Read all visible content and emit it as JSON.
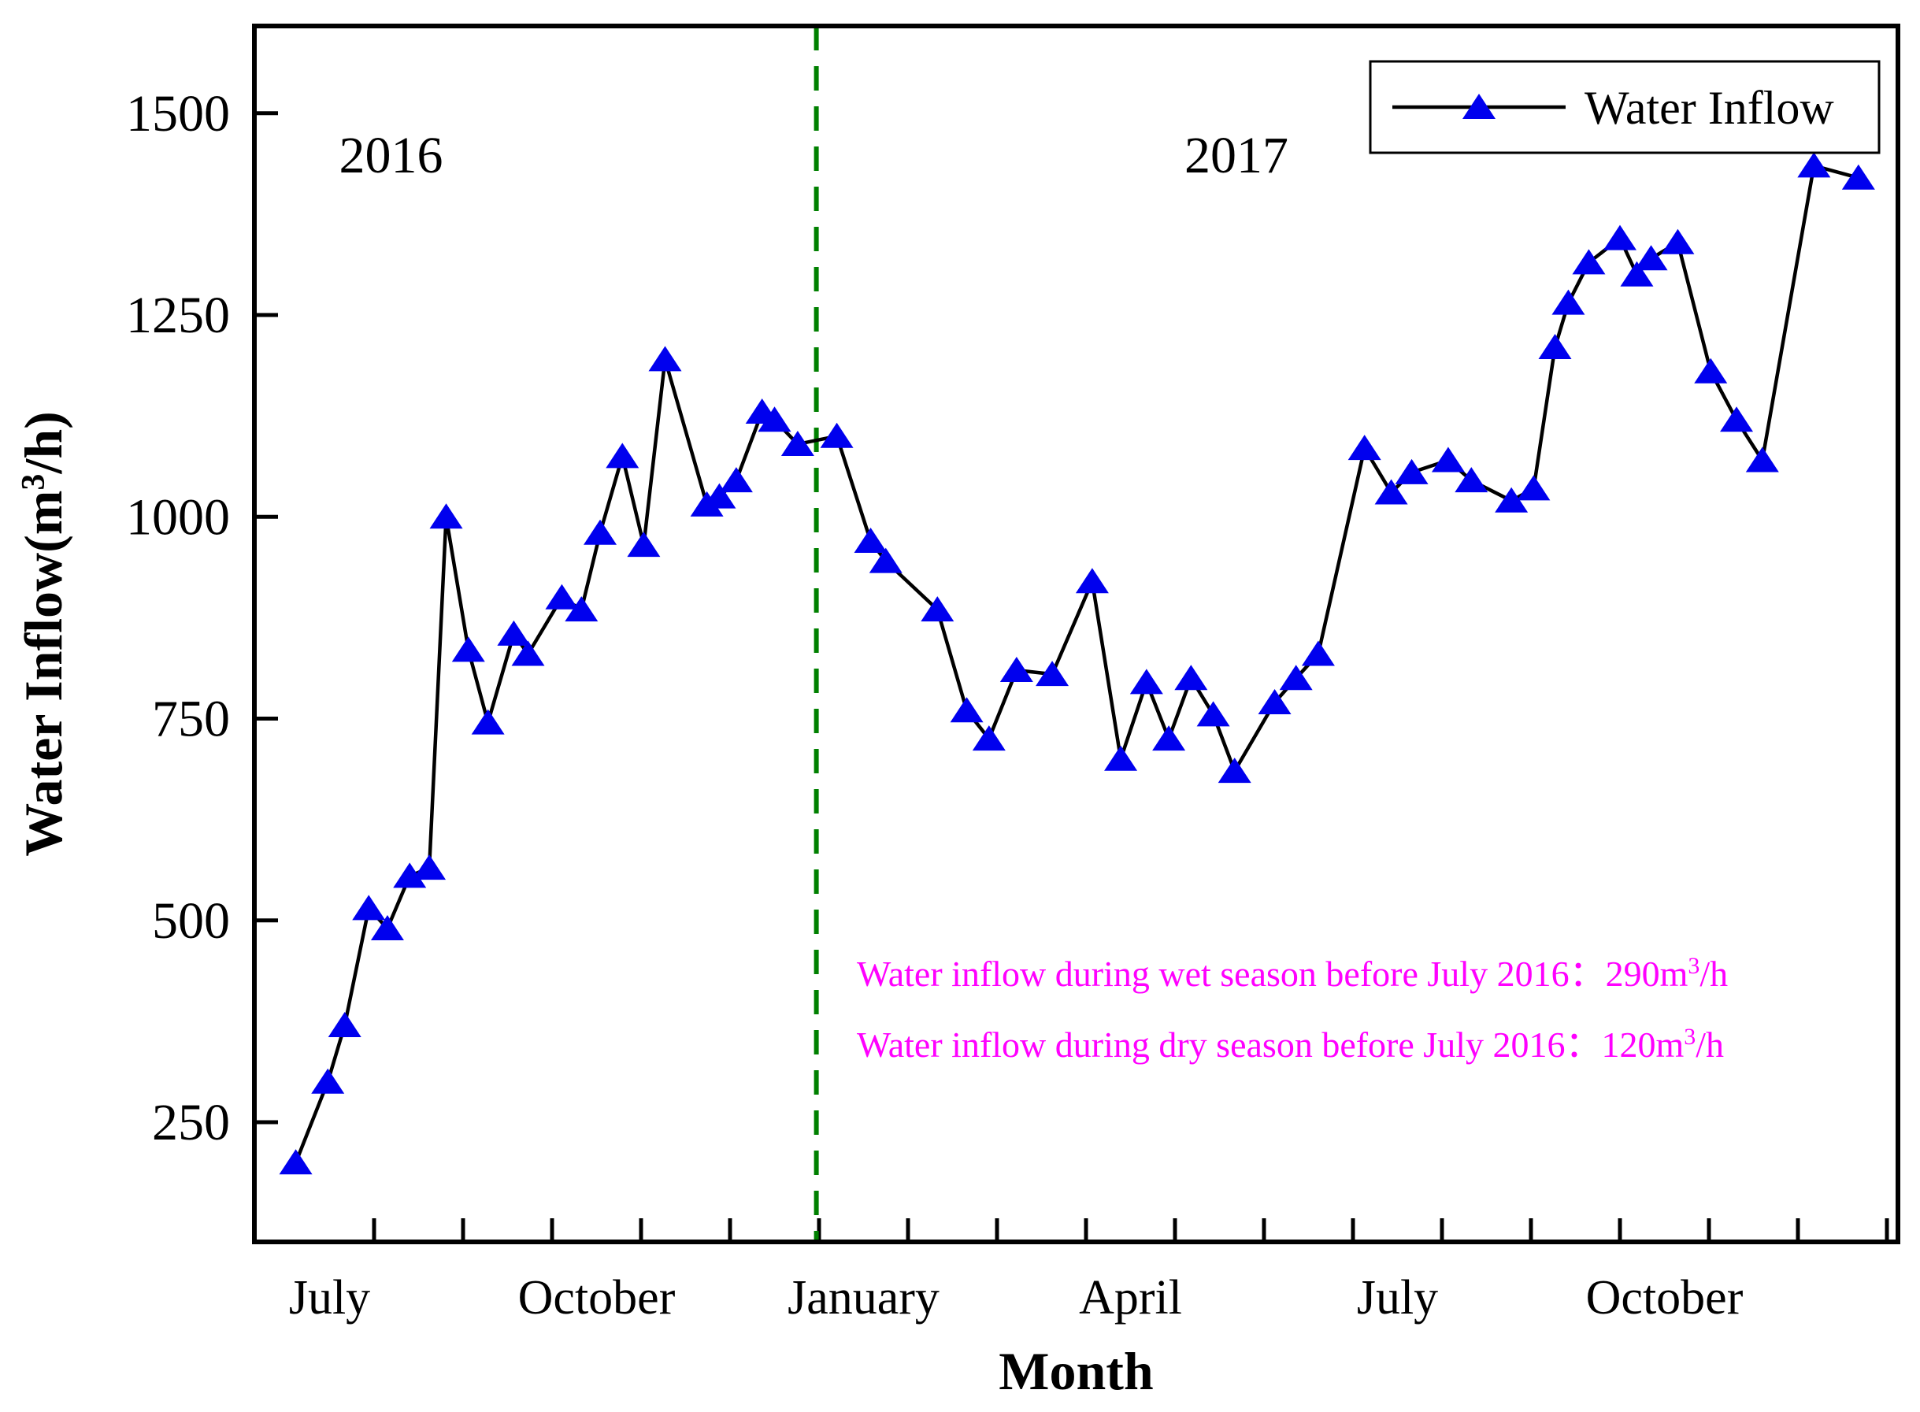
{
  "figure": {
    "background": "#ffffff",
    "legend": {
      "label": "Water Inflow"
    },
    "xlabel": "Month",
    "ylabel": {
      "prefix": "Water Inflow(m",
      "sup": "3",
      "suffix": "/h)"
    }
  },
  "chart_data": {
    "type": "line",
    "title": "",
    "xlabel": "Month",
    "ylabel": "Water Inflow(m3/h)",
    "x_unit": "fractional months since 2016-07-01",
    "grid": false,
    "legend_position": "top-right",
    "legend_label": "Water Inflow",
    "series_color": "#0000EE",
    "line_color": "#000000",
    "marker": "triangle-up",
    "y_ticks": [
      250,
      500,
      750,
      1000,
      1250,
      1500
    ],
    "ylim": [
      100,
      1610
    ],
    "xlim_months": [
      -0.35,
      18.12
    ],
    "x_month_ticks": [
      1,
      2,
      3,
      4,
      5,
      6,
      7,
      8,
      9,
      10,
      11,
      12,
      13,
      14,
      15,
      16,
      17,
      18
    ],
    "x_tick_labels": [
      {
        "label": "July",
        "m": 0.5
      },
      {
        "label": "October",
        "m": 3.5
      },
      {
        "label": "January",
        "m": 6.5
      },
      {
        "label": "April",
        "m": 9.5
      },
      {
        "label": "July",
        "m": 12.5
      },
      {
        "label": "October",
        "m": 15.5
      }
    ],
    "divider": {
      "m": 5.97,
      "color": "#008000",
      "style": "dashed"
    },
    "year_labels": [
      {
        "text": "2016",
        "m": 1.19,
        "v": 1448
      },
      {
        "text": "2017",
        "m": 10.69,
        "v": 1448
      }
    ],
    "annotations": [
      {
        "prefix": "Water inflow during wet season before July 2016：290m",
        "sup": "3",
        "suffix": "/h",
        "color": "#FF00FF"
      },
      {
        "prefix": "Water inflow during dry season before July 2016：120m",
        "sup": "3",
        "suffix": "/h",
        "color": "#FF00FF"
      }
    ],
    "series": [
      {
        "name": "Water Inflow",
        "color": "#0000EE",
        "points": [
          [
            0.12,
            200
          ],
          [
            0.48,
            300
          ],
          [
            0.67,
            370
          ],
          [
            0.94,
            515
          ],
          [
            1.15,
            490
          ],
          [
            1.4,
            555
          ],
          [
            1.62,
            565
          ],
          [
            1.81,
            1000
          ],
          [
            2.06,
            835
          ],
          [
            2.28,
            745
          ],
          [
            2.57,
            855
          ],
          [
            2.73,
            830
          ],
          [
            3.11,
            900
          ],
          [
            3.33,
            885
          ],
          [
            3.54,
            980
          ],
          [
            3.79,
            1075
          ],
          [
            4.03,
            965
          ],
          [
            4.27,
            1195
          ],
          [
            4.74,
            1015
          ],
          [
            4.88,
            1025
          ],
          [
            5.07,
            1045
          ],
          [
            5.36,
            1130
          ],
          [
            5.5,
            1120
          ],
          [
            5.76,
            1090
          ],
          [
            6.2,
            1100
          ],
          [
            6.58,
            970
          ],
          [
            6.75,
            945
          ],
          [
            7.33,
            885
          ],
          [
            7.66,
            760
          ],
          [
            7.91,
            725
          ],
          [
            8.22,
            810
          ],
          [
            8.62,
            805
          ],
          [
            9.07,
            920
          ],
          [
            9.39,
            700
          ],
          [
            9.68,
            795
          ],
          [
            9.93,
            725
          ],
          [
            10.18,
            800
          ],
          [
            10.43,
            755
          ],
          [
            10.67,
            685
          ],
          [
            11.12,
            770
          ],
          [
            11.36,
            800
          ],
          [
            11.61,
            830
          ],
          [
            12.13,
            1085
          ],
          [
            12.43,
            1030
          ],
          [
            12.66,
            1055
          ],
          [
            13.07,
            1070
          ],
          [
            13.33,
            1045
          ],
          [
            13.78,
            1020
          ],
          [
            14.03,
            1035
          ],
          [
            14.27,
            1210
          ],
          [
            14.42,
            1265
          ],
          [
            14.65,
            1315
          ],
          [
            15.0,
            1345
          ],
          [
            15.19,
            1300
          ],
          [
            15.35,
            1320
          ],
          [
            15.65,
            1340
          ],
          [
            16.02,
            1180
          ],
          [
            16.31,
            1120
          ],
          [
            16.6,
            1070
          ],
          [
            17.18,
            1435
          ],
          [
            17.68,
            1420
          ]
        ]
      }
    ]
  }
}
